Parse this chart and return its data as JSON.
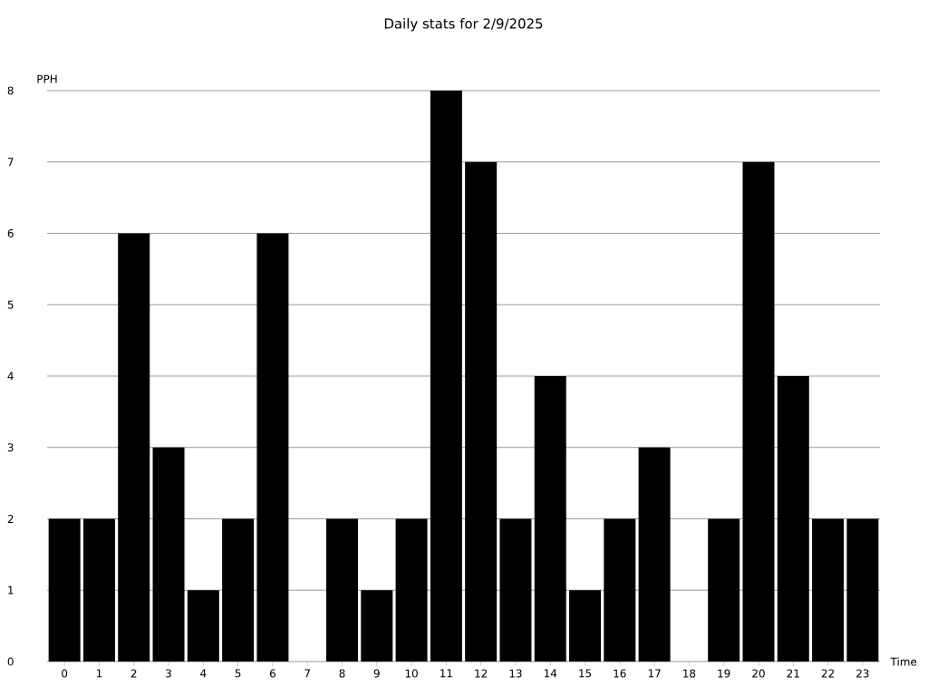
{
  "chart_data": {
    "type": "bar",
    "title": "Daily stats for 2/9/2025",
    "xlabel": "Time",
    "ylabel": "PPH",
    "categories": [
      "0",
      "1",
      "2",
      "3",
      "4",
      "5",
      "6",
      "7",
      "8",
      "9",
      "10",
      "11",
      "12",
      "13",
      "14",
      "15",
      "16",
      "17",
      "18",
      "19",
      "20",
      "21",
      "22",
      "23"
    ],
    "values": [
      2,
      2,
      6,
      3,
      1,
      2,
      6,
      0,
      2,
      1,
      2,
      8,
      7,
      2,
      4,
      1,
      2,
      3,
      0,
      2,
      7,
      4,
      2,
      2
    ],
    "color": "#000000",
    "ylim": [
      0,
      8
    ],
    "yticks": [
      0,
      1,
      2,
      3,
      4,
      5,
      6,
      7,
      8
    ],
    "grid": "y"
  }
}
